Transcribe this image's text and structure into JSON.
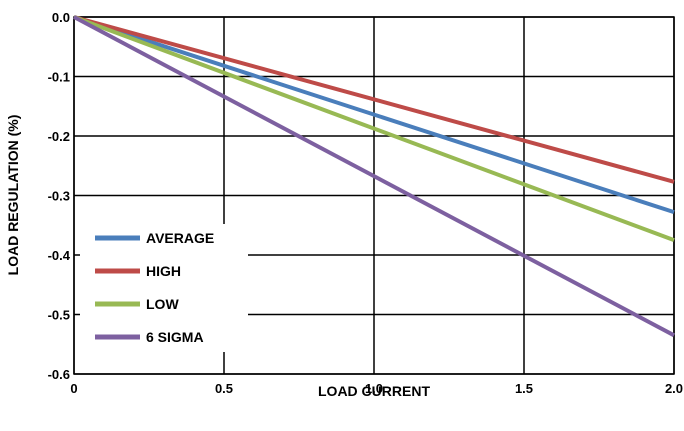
{
  "chart_data": {
    "type": "line",
    "title": "",
    "xlabel": "LOAD CURRENT",
    "ylabel": "LOAD REGULATION (%)",
    "xlim": [
      0,
      2.0
    ],
    "ylim": [
      -0.6,
      0.0
    ],
    "x_ticks": [
      0,
      0.5,
      1.0,
      1.5,
      2.0
    ],
    "x_tick_labels": [
      "0",
      "0.5",
      "1.0",
      "1.5",
      "2.0"
    ],
    "y_ticks": [
      0.0,
      -0.1,
      -0.2,
      -0.3,
      -0.4,
      -0.5,
      -0.6
    ],
    "y_tick_labels": [
      "0.0",
      "-0.1",
      "-0.2",
      "-0.3",
      "-0.4",
      "-0.5",
      "-0.6"
    ],
    "grid": true,
    "legend_position": "bottom-left",
    "series": [
      {
        "name": "AVERAGE",
        "color": "#4a7ebb",
        "x": [
          0,
          2.0
        ],
        "y": [
          0,
          -0.328
        ]
      },
      {
        "name": "HIGH",
        "color": "#be4b48",
        "x": [
          0,
          2.0
        ],
        "y": [
          0,
          -0.277
        ]
      },
      {
        "name": "LOW",
        "color": "#98b954",
        "x": [
          0,
          2.0
        ],
        "y": [
          0,
          -0.375
        ]
      },
      {
        "name": "6 SIGMA",
        "color": "#7d60a0",
        "x": [
          0,
          2.0
        ],
        "y": [
          0,
          -0.535
        ]
      }
    ]
  }
}
